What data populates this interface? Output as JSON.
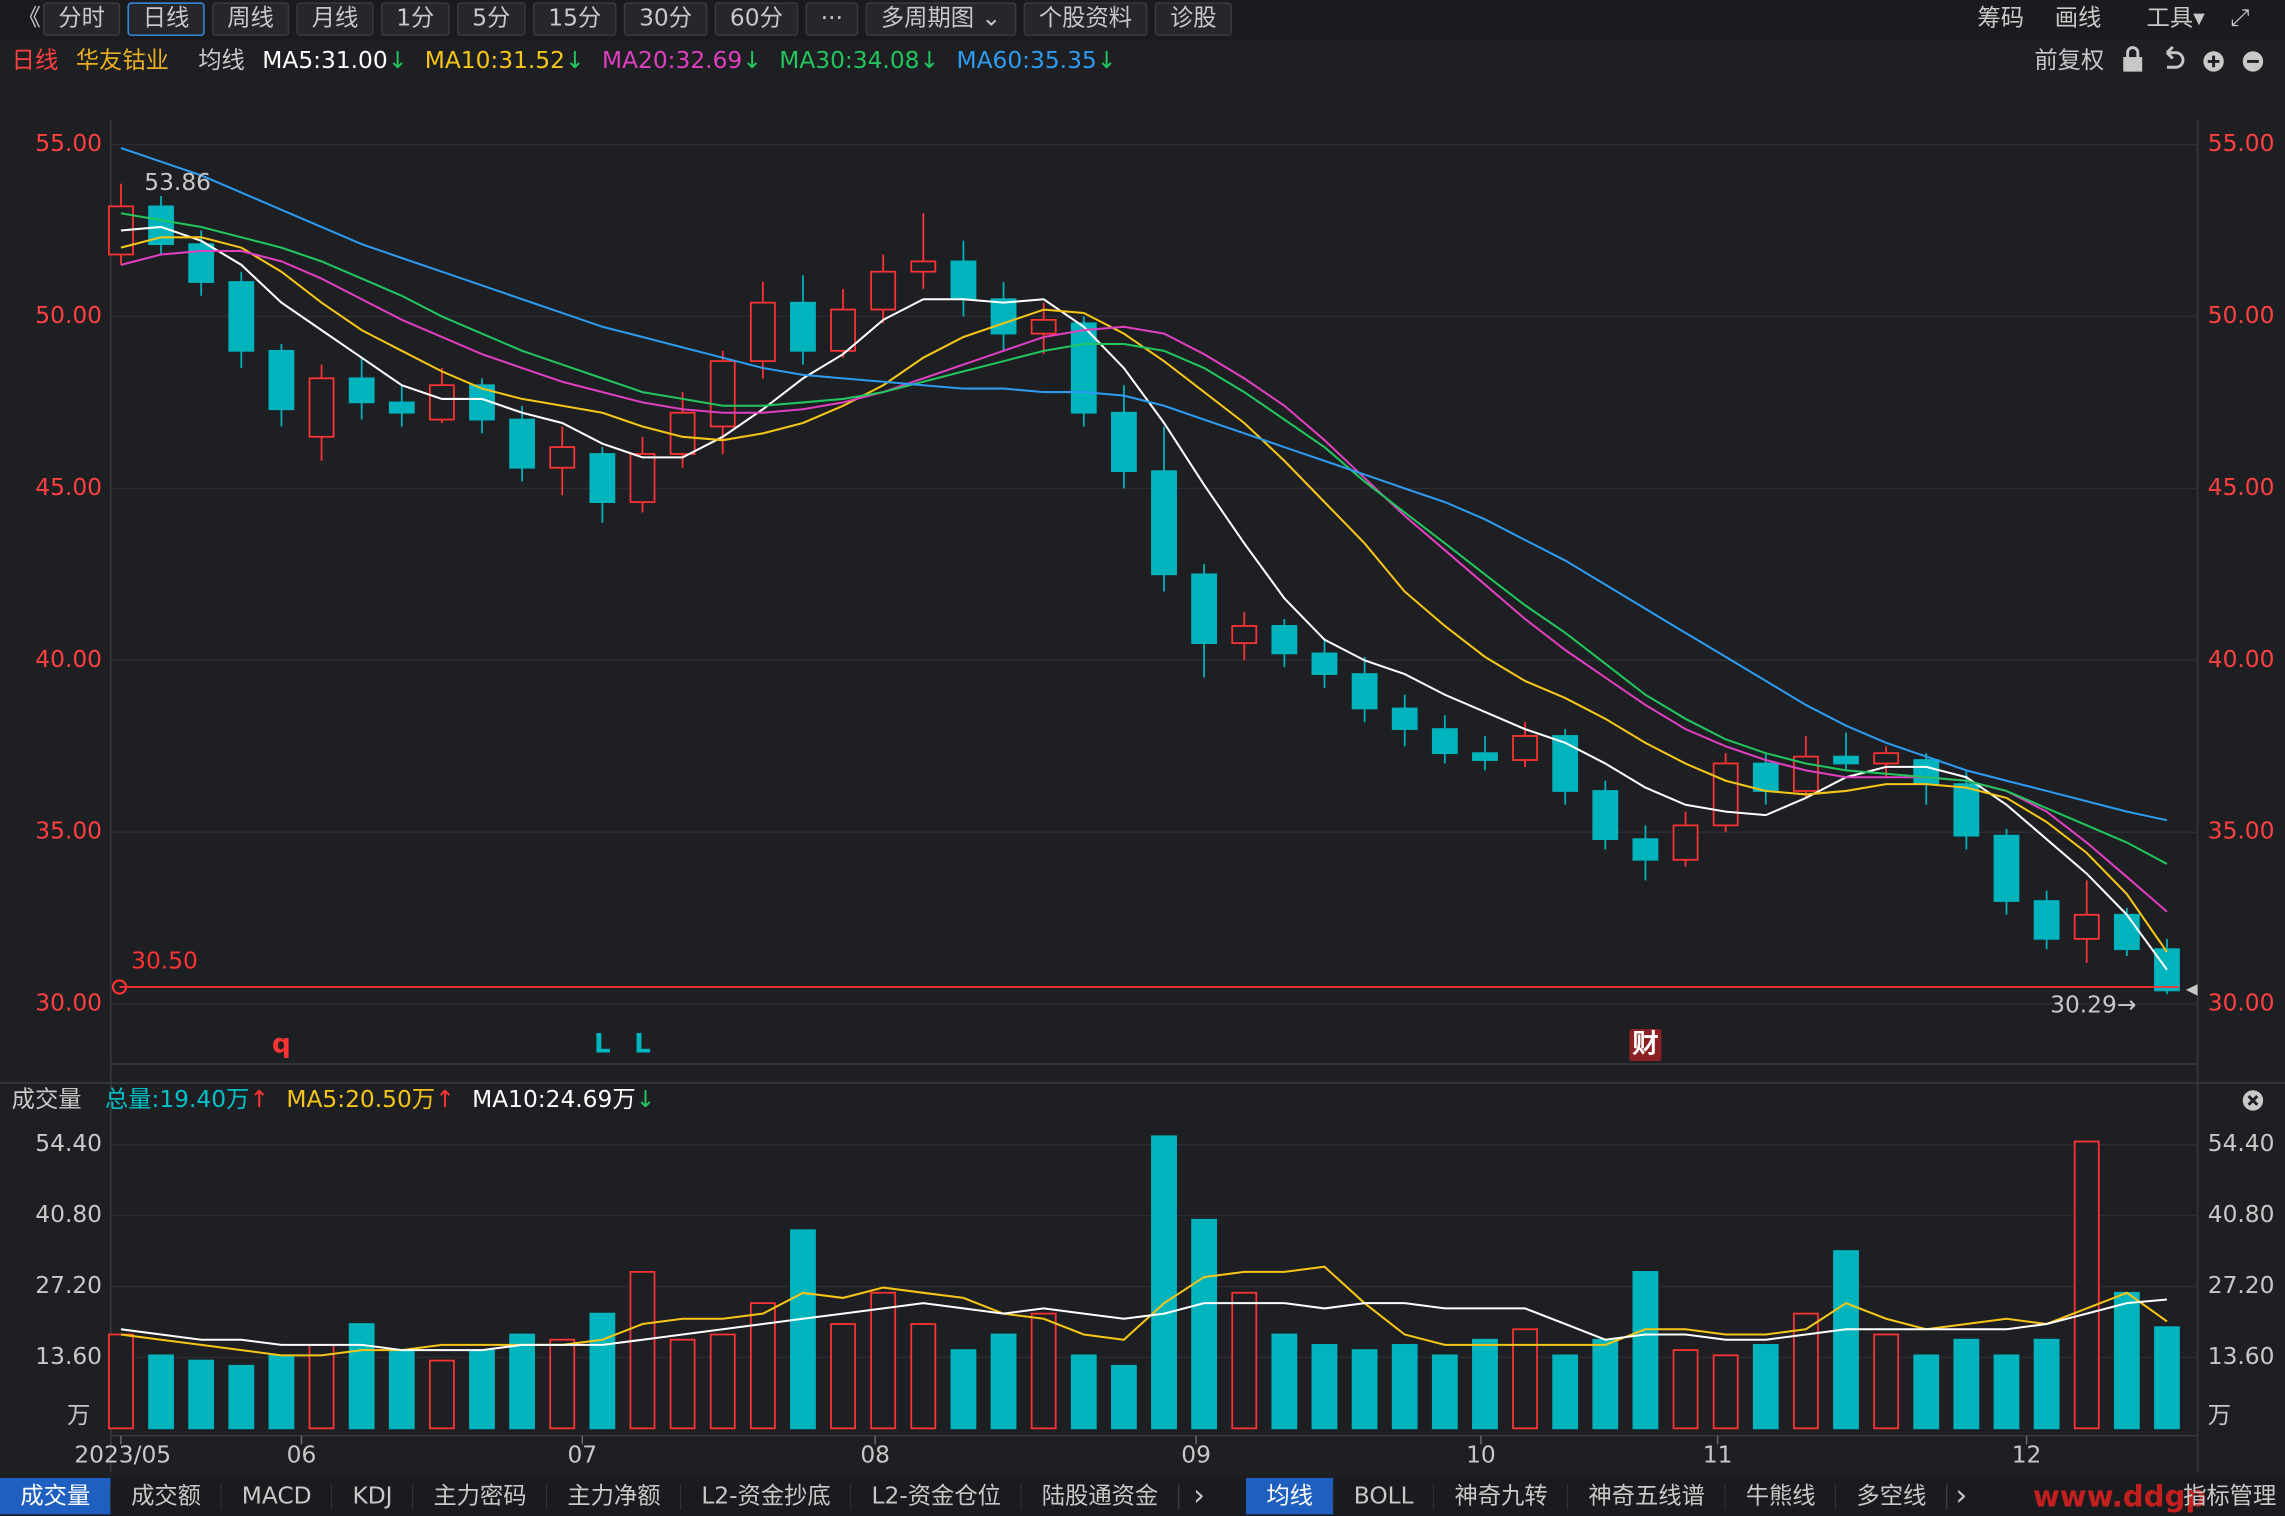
{
  "toolbar": {
    "back": "《",
    "tabs": [
      "分时",
      "日线",
      "周线",
      "月线",
      "1分",
      "5分",
      "15分",
      "30分",
      "60分",
      "···",
      "多周期图 ⌄",
      "个股资料",
      "诊股"
    ],
    "active_tab": 1,
    "right": [
      "筹码",
      "画线",
      "工具▾"
    ],
    "expand": "⤢"
  },
  "header": {
    "period": "日线",
    "stock": "华友钴业",
    "ma_label": "均线",
    "adjust": "前复权"
  },
  "chart_data": [
    {
      "type": "candlestick",
      "up_color": "#ff3333",
      "down_color": "#00b4be",
      "ylim": [
        28.26,
        55.72
      ],
      "yticks": [
        {
          "value": 30,
          "label": "30.00"
        },
        {
          "value": 35,
          "label": "35.00"
        },
        {
          "value": 40,
          "label": "40.00"
        },
        {
          "value": 45,
          "label": "45.00"
        },
        {
          "value": 50,
          "label": "50.00"
        },
        {
          "value": 55,
          "label": "55.00"
        }
      ],
      "grid": true,
      "open": [
        51.8,
        53.2,
        52.1,
        51.0,
        49.0,
        46.5,
        48.2,
        47.5,
        47.0,
        48.0,
        47.0,
        45.6,
        46.0,
        44.6,
        46.0,
        46.8,
        48.7,
        50.4,
        49.0,
        50.2,
        51.3,
        51.6,
        50.5,
        49.5,
        49.8,
        47.2,
        45.5,
        42.5,
        40.5,
        41.0,
        40.2,
        39.6,
        38.6,
        38.0,
        37.3,
        37.1,
        37.8,
        36.2,
        34.8,
        34.2,
        35.2,
        37.0,
        36.2,
        37.2,
        37.0,
        37.1,
        36.4,
        34.9,
        33.0,
        31.9,
        32.6,
        31.6
      ],
      "high": [
        53.86,
        53.5,
        52.5,
        51.3,
        49.2,
        48.6,
        48.8,
        48.0,
        48.5,
        48.2,
        47.4,
        46.8,
        46.2,
        46.5,
        47.8,
        49.0,
        51.0,
        51.2,
        50.8,
        51.8,
        53.0,
        52.2,
        51.0,
        50.4,
        50.0,
        48.0,
        46.8,
        42.8,
        41.4,
        41.2,
        40.6,
        40.1,
        39.0,
        38.4,
        37.8,
        38.2,
        38.0,
        36.5,
        35.2,
        35.6,
        37.3,
        37.3,
        37.8,
        37.9,
        37.5,
        37.3,
        36.8,
        35.1,
        33.3,
        33.6,
        32.8,
        31.9
      ],
      "low": [
        51.5,
        51.8,
        50.6,
        48.5,
        46.8,
        45.8,
        47.0,
        46.8,
        46.9,
        46.6,
        45.2,
        44.8,
        44.0,
        44.3,
        45.6,
        46.0,
        48.2,
        48.6,
        48.8,
        49.8,
        50.8,
        50.0,
        49.0,
        48.9,
        46.8,
        45.0,
        42.0,
        39.5,
        40.0,
        39.8,
        39.2,
        38.2,
        37.5,
        37.0,
        36.8,
        36.9,
        35.8,
        34.5,
        33.6,
        34.0,
        35.0,
        35.8,
        36.0,
        36.8,
        36.6,
        35.8,
        34.5,
        32.6,
        31.6,
        31.2,
        31.4,
        30.29
      ],
      "close": [
        53.2,
        52.1,
        51.0,
        49.0,
        47.3,
        48.2,
        47.5,
        47.2,
        48.0,
        47.0,
        45.6,
        46.2,
        44.6,
        46.0,
        47.2,
        48.7,
        50.4,
        49.0,
        50.2,
        51.3,
        51.6,
        50.5,
        49.5,
        49.9,
        47.2,
        45.5,
        42.5,
        40.5,
        41.0,
        40.2,
        39.6,
        38.6,
        38.0,
        37.3,
        37.1,
        37.8,
        36.2,
        34.8,
        34.2,
        35.2,
        37.0,
        36.2,
        37.2,
        37.0,
        37.3,
        36.4,
        34.9,
        33.0,
        31.9,
        32.6,
        31.6,
        30.4
      ],
      "series": [
        {
          "name": "MA5:31.00",
          "arrow": "↓",
          "color": "#ffffff",
          "values": [
            52.5,
            52.6,
            52.2,
            51.5,
            50.4,
            49.6,
            48.8,
            48.0,
            47.6,
            47.6,
            47.2,
            46.9,
            46.3,
            45.9,
            45.9,
            46.5,
            47.3,
            48.2,
            48.9,
            49.9,
            50.5,
            50.5,
            50.4,
            50.5,
            49.7,
            48.5,
            46.9,
            45.1,
            43.4,
            41.8,
            40.6,
            40.0,
            39.6,
            39.0,
            38.5,
            38.0,
            37.6,
            37.0,
            36.3,
            35.8,
            35.6,
            35.5,
            36.0,
            36.6,
            36.9,
            36.9,
            36.6,
            35.8,
            34.8,
            33.8,
            32.6,
            31.0
          ]
        },
        {
          "name": "MA10:31.52",
          "arrow": "↓",
          "color": "#f5c518",
          "values": [
            52.0,
            52.3,
            52.3,
            52.0,
            51.3,
            50.4,
            49.6,
            49.0,
            48.4,
            47.9,
            47.6,
            47.4,
            47.2,
            46.8,
            46.5,
            46.4,
            46.6,
            46.9,
            47.4,
            48.0,
            48.8,
            49.4,
            49.8,
            50.2,
            50.1,
            49.5,
            48.7,
            47.8,
            46.9,
            45.8,
            44.6,
            43.4,
            42.0,
            41.0,
            40.1,
            39.4,
            38.9,
            38.3,
            37.6,
            37.0,
            36.5,
            36.2,
            36.1,
            36.2,
            36.4,
            36.4,
            36.3,
            36.0,
            35.3,
            34.4,
            33.2,
            31.52
          ]
        },
        {
          "name": "MA20:32.69",
          "arrow": "↓",
          "color": "#e040c0",
          "values": [
            51.5,
            51.8,
            51.9,
            51.9,
            51.6,
            51.1,
            50.5,
            49.9,
            49.4,
            48.9,
            48.5,
            48.1,
            47.8,
            47.5,
            47.3,
            47.2,
            47.2,
            47.3,
            47.5,
            47.8,
            48.2,
            48.6,
            49.0,
            49.4,
            49.6,
            49.7,
            49.5,
            48.9,
            48.2,
            47.4,
            46.4,
            45.3,
            44.2,
            43.2,
            42.2,
            41.2,
            40.3,
            39.5,
            38.7,
            38.0,
            37.5,
            37.1,
            36.8,
            36.6,
            36.6,
            36.6,
            36.5,
            36.2,
            35.6,
            34.7,
            33.7,
            32.69
          ]
        },
        {
          "name": "MA30:34.08",
          "arrow": "↓",
          "color": "#22c55e",
          "values": [
            53.0,
            52.8,
            52.6,
            52.3,
            52.0,
            51.6,
            51.1,
            50.6,
            50.0,
            49.5,
            49.0,
            48.6,
            48.2,
            47.8,
            47.6,
            47.4,
            47.4,
            47.5,
            47.6,
            47.8,
            48.1,
            48.4,
            48.7,
            49.0,
            49.2,
            49.2,
            49.0,
            48.5,
            47.8,
            47.0,
            46.2,
            45.2,
            44.3,
            43.4,
            42.5,
            41.6,
            40.8,
            39.9,
            39.0,
            38.3,
            37.7,
            37.3,
            37.0,
            36.8,
            36.7,
            36.6,
            36.5,
            36.2,
            35.7,
            35.2,
            34.7,
            34.08
          ]
        },
        {
          "name": "MA60:35.35",
          "arrow": "↓",
          "color": "#2d9bf0",
          "values": [
            54.9,
            54.5,
            54.1,
            53.6,
            53.1,
            52.6,
            52.1,
            51.7,
            51.3,
            50.9,
            50.5,
            50.1,
            49.7,
            49.4,
            49.1,
            48.8,
            48.5,
            48.3,
            48.2,
            48.1,
            48.0,
            47.9,
            47.9,
            47.8,
            47.8,
            47.7,
            47.4,
            47.0,
            46.6,
            46.2,
            45.8,
            45.4,
            45.0,
            44.6,
            44.1,
            43.5,
            42.9,
            42.2,
            41.5,
            40.8,
            40.1,
            39.4,
            38.7,
            38.1,
            37.6,
            37.2,
            36.8,
            36.5,
            36.2,
            35.9,
            35.6,
            35.35
          ]
        }
      ],
      "max_label": {
        "value": 53.86,
        "label": "53.86"
      },
      "hline": {
        "value": 30.5,
        "label": "30.50",
        "color": "#ff3333"
      },
      "low_label": {
        "value": 30.29,
        "label": "30.29→"
      },
      "events": [
        {
          "index": 4,
          "label": "q",
          "color": "#ff3333"
        },
        {
          "index": 12,
          "label": "L",
          "color": "#00b4be"
        },
        {
          "index": 13,
          "label": "L",
          "color": "#00b4be"
        },
        {
          "index": 38,
          "label": "财",
          "color": "#ffffff"
        }
      ]
    },
    {
      "type": "bar",
      "title": "成交量",
      "total": {
        "label": "总量:19.40万",
        "arrow": "↑",
        "color": "#00c0c8"
      },
      "ylim": [
        0,
        58.4
      ],
      "yticks": [
        {
          "value": 13.6,
          "label": "13.60"
        },
        {
          "value": 27.2,
          "label": "27.20"
        },
        {
          "value": 40.8,
          "label": "40.80"
        },
        {
          "value": 54.4,
          "label": "54.40"
        }
      ],
      "unit": "万",
      "grid": true,
      "values": [
        18,
        14,
        13,
        12,
        14,
        16,
        20,
        15,
        13,
        15,
        18,
        17,
        22,
        30,
        17,
        18,
        24,
        38,
        20,
        26,
        20,
        15,
        18,
        22,
        14,
        12,
        56,
        40,
        26,
        18,
        16,
        15,
        16,
        14,
        17,
        19,
        14,
        17,
        30,
        15,
        14,
        16,
        22,
        34,
        18,
        14,
        17,
        14,
        17,
        55,
        26,
        19.4
      ],
      "series": [
        {
          "name": "MA5:20.50万",
          "arrow": "↑",
          "color": "#f5c518",
          "values": [
            18,
            17,
            16,
            15,
            14,
            14,
            15,
            15,
            16,
            16,
            16,
            16,
            17,
            20,
            21,
            21,
            22,
            26,
            25,
            27,
            26,
            25,
            22,
            21,
            18,
            17,
            24,
            29,
            30,
            30,
            31,
            24,
            18,
            16,
            16,
            16,
            16,
            16,
            19,
            19,
            18,
            18,
            19,
            24,
            21,
            19,
            20,
            21,
            20,
            23,
            26,
            20.5
          ]
        },
        {
          "name": "MA10:24.69万",
          "arrow": "↓",
          "color": "#ffffff",
          "values": [
            19,
            18,
            17,
            17,
            16,
            16,
            16,
            15,
            15,
            15,
            16,
            16,
            16,
            17,
            18,
            19,
            20,
            21,
            22,
            23,
            24,
            23,
            22,
            23,
            22,
            21,
            22,
            24,
            24,
            24,
            23,
            24,
            24,
            23,
            23,
            23,
            20,
            17,
            18,
            18,
            17,
            17,
            18,
            19,
            19,
            19,
            19,
            19,
            20,
            22,
            24,
            24.69
          ]
        }
      ],
      "xticks": [
        {
          "value": 0,
          "label": "2023/05"
        },
        {
          "value": 4.5,
          "label": "06"
        },
        {
          "value": 11.5,
          "label": "07"
        },
        {
          "value": 18.8,
          "label": "08"
        },
        {
          "value": 26.8,
          "label": "09"
        },
        {
          "value": 33.9,
          "label": "10"
        },
        {
          "value": 39.8,
          "label": "11"
        },
        {
          "value": 47.5,
          "label": "12"
        }
      ]
    }
  ],
  "bottom_tabs": {
    "left": [
      "成交量",
      "成交额",
      "MACD",
      "KDJ",
      "主力密码",
      "主力净额",
      "L2-资金抄底",
      "L2-资金仓位",
      "陆股通资金"
    ],
    "right": [
      "均线",
      "BOLL",
      "神奇九转",
      "神奇五线谱",
      "牛熊线",
      "多空线"
    ],
    "active": [
      0,
      0
    ],
    "more": "›",
    "manage": "指标管理",
    "watermark": "www.ddgp"
  }
}
